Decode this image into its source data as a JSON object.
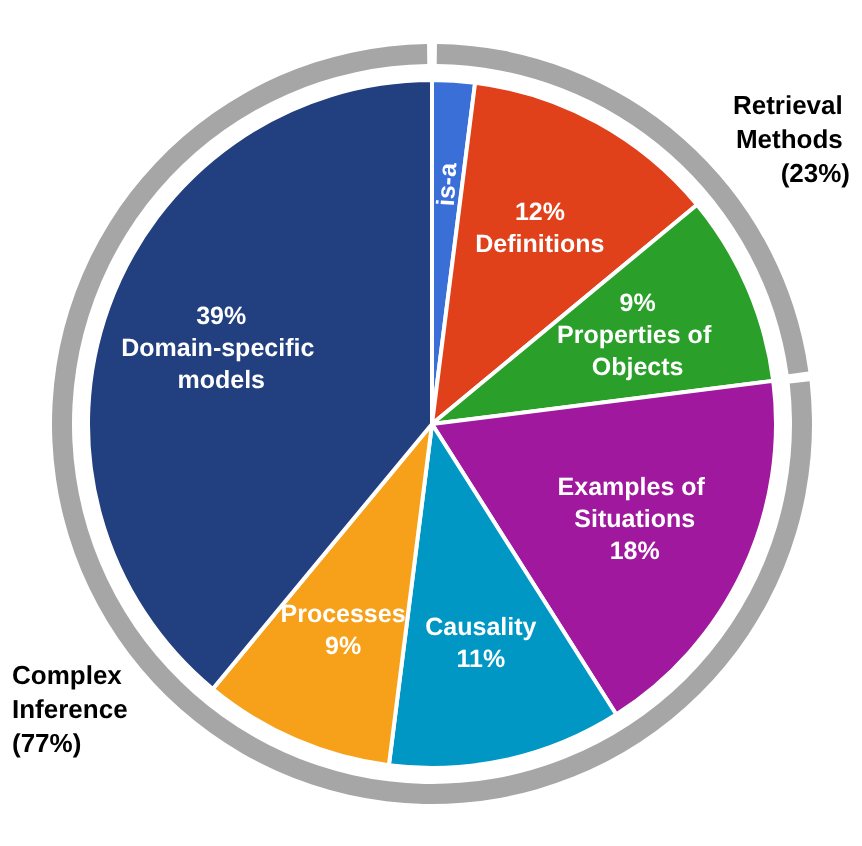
{
  "chart_data": [
    {
      "type": "pie",
      "legend": false,
      "categories": [
        "is-a",
        "Definitions",
        "Properties of Objects",
        "Examples of Situations",
        "Causality",
        "Processes",
        "Domain-specific models"
      ],
      "values": [
        2,
        12,
        9,
        18,
        11,
        9,
        39
      ],
      "value_labels": [
        null,
        "12%",
        "9%",
        "18%",
        "11%",
        "9%",
        "39%"
      ],
      "colors": [
        "#3a6fd8",
        "#e0401a",
        "#2aa02a",
        "#a0189e",
        "#0097c4",
        "#f7a11a",
        "#223f80"
      ]
    },
    {
      "type": "donut",
      "legend": false,
      "categories": [
        "Retrieval Methods (23%)",
        "Complex Inference (77%)"
      ],
      "values": [
        23,
        77
      ],
      "colors": [
        "#a6a6a6",
        "#a6a6a6"
      ]
    }
  ]
}
